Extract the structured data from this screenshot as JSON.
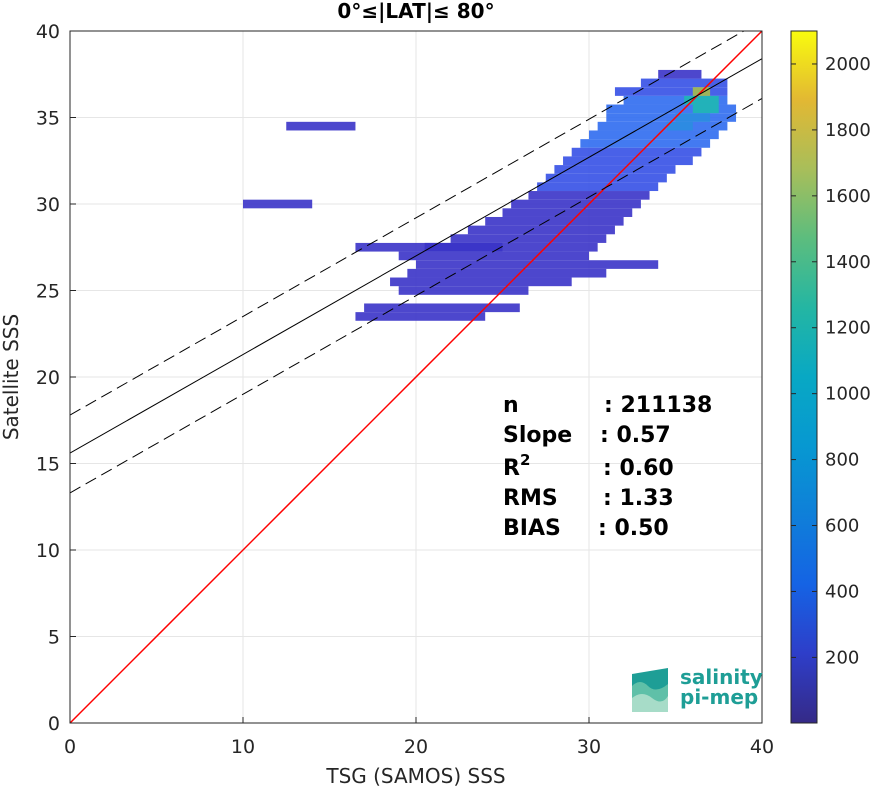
{
  "chart_data": {
    "type": "heatmap",
    "title": "0°≤|LAT|≤ 80°",
    "xlabel": "TSG (SAMOS) SSS",
    "ylabel": "Satellite SSS",
    "xlim": [
      0,
      40
    ],
    "ylim": [
      0,
      40
    ],
    "xticks": [
      "0",
      "10",
      "20",
      "30",
      "40"
    ],
    "yticks": [
      "0",
      "5",
      "10",
      "15",
      "20",
      "25",
      "30",
      "35",
      "40"
    ],
    "grid": true,
    "colorbar": {
      "min": 1,
      "max": 2100,
      "ticks": [
        "200",
        "400",
        "600",
        "800",
        "1000",
        "1200",
        "1400",
        "1600",
        "1800",
        "2000"
      ],
      "colormap": "parula"
    },
    "lines": [
      {
        "kind": "identity",
        "slope": 1,
        "intercept": 0,
        "color": "#ff0000",
        "style": "solid"
      },
      {
        "kind": "regression",
        "slope": 0.57,
        "intercept": 15.6,
        "color": "#000000",
        "style": "solid"
      },
      {
        "kind": "regression-upper",
        "slope": 0.57,
        "intercept": 17.8,
        "color": "#000000",
        "style": "dashed"
      },
      {
        "kind": "regression-lower",
        "slope": 0.57,
        "intercept": 13.3,
        "color": "#000000",
        "style": "dashed"
      }
    ],
    "stats": [
      {
        "label": "n",
        "value": ": 211138"
      },
      {
        "label": "Slope",
        "value": ": 0.57"
      },
      {
        "label": "R",
        "sup": "2",
        "value": ": 0.60"
      },
      {
        "label": "RMS",
        "value": ": 1.33"
      },
      {
        "label": "BIAS",
        "value": ": 0.50"
      }
    ],
    "density_segments": [
      [
        31.5,
        38.0,
        36.5,
        2
      ],
      [
        32.0,
        38.0,
        36.0,
        3
      ],
      [
        31.0,
        38.5,
        35.5,
        3
      ],
      [
        31.0,
        38.5,
        35.0,
        3
      ],
      [
        30.5,
        38.0,
        34.5,
        3
      ],
      [
        30.0,
        37.5,
        34.0,
        3
      ],
      [
        29.5,
        37.0,
        33.5,
        3
      ],
      [
        29.0,
        36.5,
        33.0,
        2
      ],
      [
        28.5,
        36.0,
        32.5,
        2
      ],
      [
        28.0,
        35.0,
        32.0,
        2
      ],
      [
        27.5,
        34.5,
        31.5,
        2
      ],
      [
        27.0,
        34.0,
        31.0,
        2
      ],
      [
        26.5,
        33.5,
        30.5,
        1
      ],
      [
        25.5,
        33.0,
        30.0,
        1
      ],
      [
        25.0,
        32.5,
        29.5,
        1
      ],
      [
        24.0,
        32.0,
        29.0,
        1
      ],
      [
        23.0,
        31.5,
        28.5,
        1
      ],
      [
        22.0,
        31.0,
        28.0,
        1
      ],
      [
        20.5,
        30.5,
        27.5,
        1
      ],
      [
        19.0,
        30.0,
        27.0,
        1
      ],
      [
        16.5,
        25.0,
        27.5,
        1
      ],
      [
        20.0,
        34.0,
        26.5,
        1
      ],
      [
        19.5,
        31.0,
        26.0,
        1
      ],
      [
        18.5,
        29.0,
        25.5,
        1
      ],
      [
        19.0,
        26.5,
        25.0,
        1
      ],
      [
        17.0,
        26.0,
        24.0,
        1
      ],
      [
        16.5,
        24.0,
        23.5,
        1
      ],
      [
        33.0,
        38.0,
        37.0,
        2
      ],
      [
        34.0,
        36.5,
        37.5,
        1
      ],
      [
        12.5,
        16.5,
        34.5,
        1
      ],
      [
        10.0,
        14.0,
        30.0,
        1
      ],
      [
        35.5,
        37.5,
        36.0,
        5
      ],
      [
        36.0,
        37.0,
        36.5,
        7
      ],
      [
        36.0,
        37.5,
        35.5,
        5
      ],
      [
        35.0,
        37.0,
        35.0,
        4
      ],
      [
        34.5,
        36.0,
        34.5,
        4
      ]
    ]
  },
  "logo": {
    "line1": "salinity",
    "line2": "pi-mep"
  }
}
